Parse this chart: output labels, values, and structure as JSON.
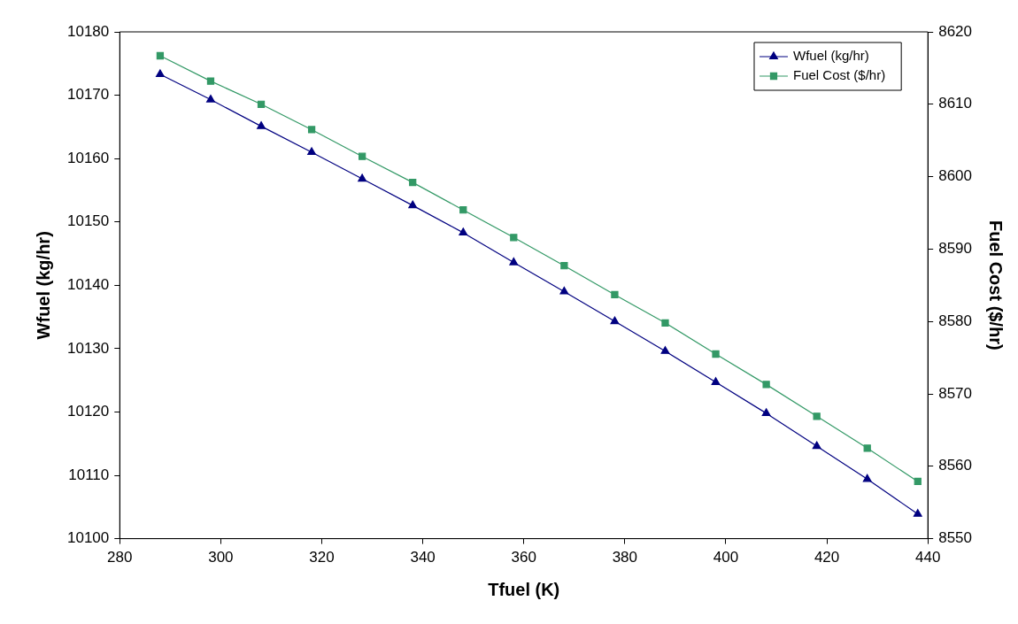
{
  "chart_data": {
    "type": "line",
    "x": [
      288,
      298,
      308,
      318,
      328,
      338,
      348,
      358,
      368,
      378,
      388,
      398,
      408,
      418,
      428,
      438
    ],
    "series": [
      {
        "name": "Wfuel (kg/hr)",
        "color": "#000080",
        "marker": "triangle",
        "values": [
          10173.3,
          10169.3,
          10165.1,
          10161.0,
          10156.8,
          10152.6,
          10148.3,
          10143.6,
          10139.0,
          10134.3,
          10129.6,
          10124.7,
          10119.8,
          10114.6,
          10109.4,
          10103.9
        ]
      },
      {
        "name": "Fuel Cost ($/hr)",
        "color": "#339966",
        "marker": "square",
        "axis": "y2",
        "values": [
          8616.7,
          8613.2,
          8610.0,
          8606.5,
          8602.8,
          8599.2,
          8595.4,
          8591.6,
          8587.7,
          8583.7,
          8579.8,
          8575.5,
          8571.3,
          8566.9,
          8562.5,
          8557.9
        ]
      }
    ],
    "xlabel": "Tfuel (K)",
    "ylabel": "Wfuel (kg/hr)",
    "y2label": "Fuel Cost ($/hr)",
    "xlim": [
      280,
      440
    ],
    "xticks": [
      280,
      300,
      320,
      340,
      360,
      380,
      400,
      420,
      440
    ],
    "ylim": [
      10100,
      10180
    ],
    "yticks": [
      10100,
      10110,
      10120,
      10130,
      10140,
      10150,
      10160,
      10170,
      10180
    ],
    "y2lim": [
      8550,
      8620
    ],
    "y2ticks": [
      8550,
      8560,
      8570,
      8580,
      8590,
      8600,
      8610,
      8620
    ],
    "grid": false,
    "legend": "top right",
    "line_style": "solid"
  }
}
